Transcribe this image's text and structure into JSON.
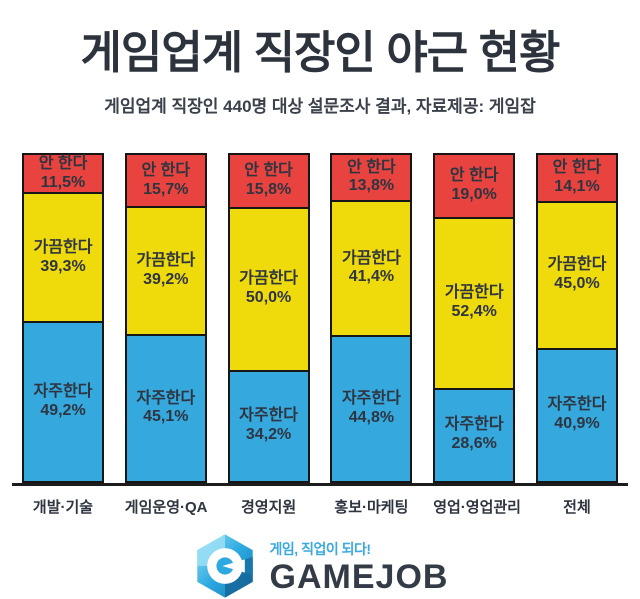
{
  "header": {
    "title": "게임업계 직장인 야근 현황",
    "subtitle": "게임업계 직장인 440명 대상 설문조사 결과, 자료제공: 게임잡"
  },
  "chart_data": {
    "type": "bar",
    "stacked": true,
    "orientation": "vertical",
    "unit": "%",
    "ylim": [
      0,
      100
    ],
    "grid": false,
    "legend": "labels-inside-segments",
    "categories": [
      "개발·기술",
      "게임운영·QA",
      "경영지원",
      "홍보·마케팅",
      "영업·영업관리",
      "전체"
    ],
    "series": [
      {
        "key": "none",
        "name": "안 한다",
        "color": "#e8433f",
        "values": [
          11.5,
          15.7,
          15.8,
          13.8,
          19.0,
          14.1
        ],
        "display": [
          "11,5%",
          "15,7%",
          "15,8%",
          "13,8%",
          "19,0%",
          "14,1%"
        ]
      },
      {
        "key": "sometimes",
        "name": "가끔한다",
        "color": "#efda0c",
        "values": [
          39.3,
          39.2,
          50.0,
          41.4,
          52.4,
          45.0
        ],
        "display": [
          "39,3%",
          "39,2%",
          "50,0%",
          "41,4%",
          "52,4%",
          "45,0%"
        ]
      },
      {
        "key": "often",
        "name": "자주한다",
        "color": "#35a8dd",
        "values": [
          49.2,
          45.1,
          34.2,
          44.8,
          28.6,
          40.9
        ],
        "display": [
          "49,2%",
          "45,1%",
          "34,2%",
          "44,8%",
          "28,6%",
          "40,9%"
        ]
      }
    ],
    "bar_border_color": "#161616",
    "segment_label_color": "#2e3540"
  },
  "footer": {
    "logo_tagline": "게임, 직업이 되다!",
    "logo_text": "GAMEJOB",
    "logo_colors": {
      "light": "#9adff6",
      "mid": "#2ba9e0",
      "dark": "#1878ac",
      "darker": "#14659a",
      "text": "#333b46",
      "tagline": "#3baadf"
    }
  }
}
